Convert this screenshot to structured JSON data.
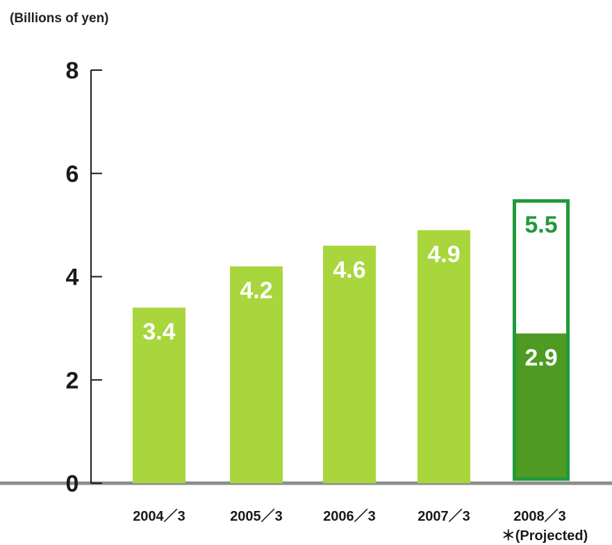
{
  "chart_data": {
    "type": "bar",
    "ylabel": "(Billions of yen)",
    "ylim": [
      0,
      8
    ],
    "yticks": [
      0,
      2,
      4,
      6,
      8
    ],
    "grid": false,
    "categories": [
      "2004／3",
      "2005／3",
      "2006／3",
      "2007／3",
      "2008／3"
    ],
    "category_notes": [
      "",
      "",
      "",
      "",
      "＊(Projected)"
    ],
    "values": [
      3.4,
      4.2,
      4.6,
      4.9,
      5.5
    ],
    "value_labels": [
      "3.4",
      "4.2",
      "4.6",
      "4.9",
      "5.5"
    ],
    "projected_partial": {
      "category": "2008／3",
      "value": 2.9,
      "label": "2.9"
    },
    "colors": {
      "bar": "#a8d63c",
      "projected_outline": "#1f9a3a",
      "projected_partial": "#4e9a22",
      "projected_label": "#1f9a3a",
      "axis": "#1a1a1a",
      "baseline": "#8c8c8c"
    }
  }
}
